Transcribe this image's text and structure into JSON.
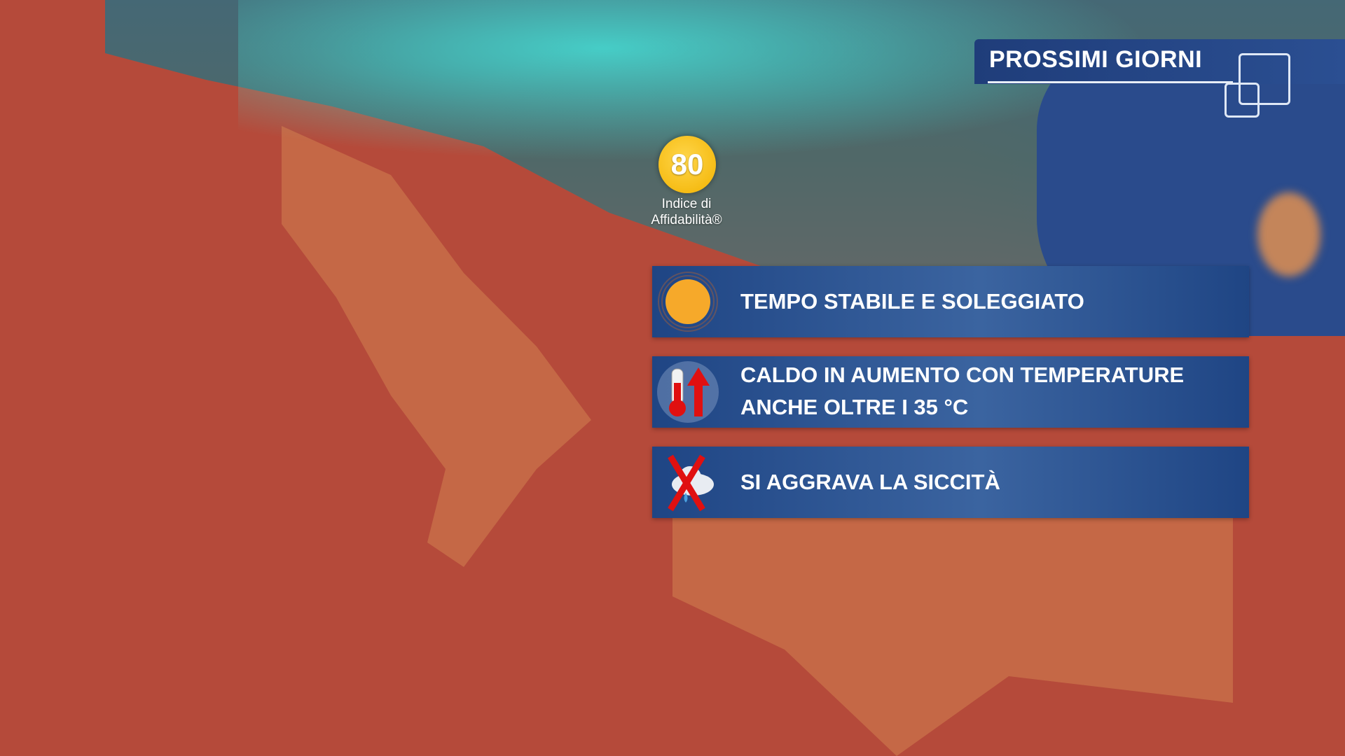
{
  "header": {
    "title": "PROSSIMI GIORNI"
  },
  "reliability": {
    "value": "80",
    "label_line1": "Indice di",
    "label_line2": "Affidabilità®"
  },
  "forecast": [
    {
      "icon": "sun-icon",
      "text": "TEMPO STABILE E SOLEGGIATO"
    },
    {
      "icon": "thermometer-up-icon",
      "line1": "CALDO IN AUMENTO CON TEMPERATURE",
      "line2": "ANCHE OLTRE I 35 °C"
    },
    {
      "icon": "no-rain-icon",
      "text": "SI AGGRAVA LA SICCITÀ"
    }
  ],
  "colors": {
    "panel": "#1f4584",
    "badge": "#f2b200",
    "heat": "#b54a3a",
    "alert_red": "#e01010"
  }
}
